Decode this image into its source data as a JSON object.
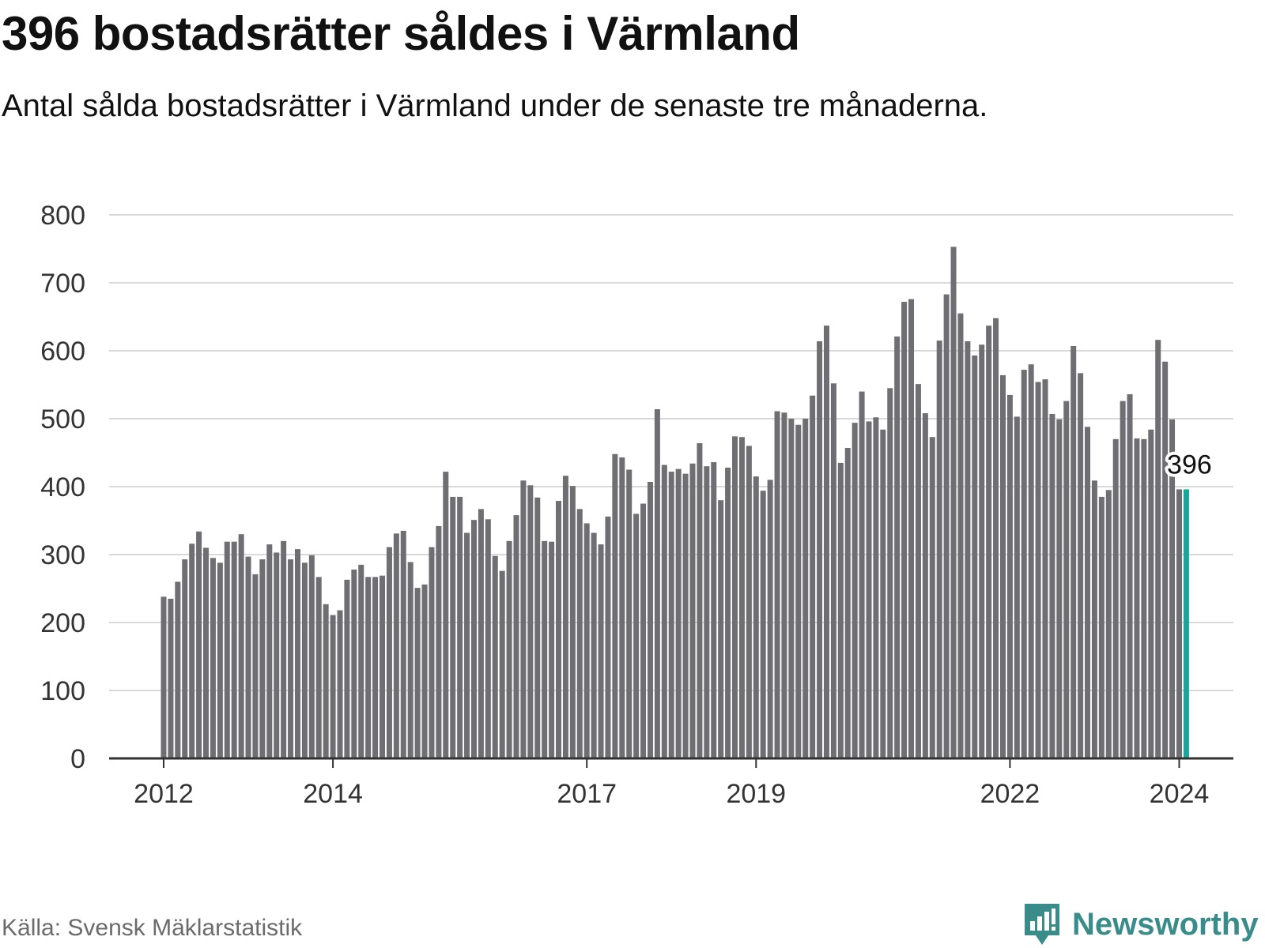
{
  "header": {
    "title": "396 bostadsrätter såldes i Värmland",
    "subtitle": "Antal sålda bostadsrätter i Värmland under de senaste tre månaderna."
  },
  "footer": {
    "source": "Källa: Svensk Mäklarstatistik",
    "brand": "Newsworthy"
  },
  "colors": {
    "bar": "#6e6e73",
    "highlight": "#16a69a",
    "grid": "#d9d9d9",
    "axis": "#333333",
    "brand": "#3a8c8b"
  },
  "chart_data": {
    "type": "bar",
    "title": "396 bostadsrätter såldes i Värmland",
    "subtitle": "Antal sålda bostadsrätter i Värmland under de senaste tre månaderna.",
    "xlabel": "",
    "ylabel": "",
    "ylim": [
      0,
      800
    ],
    "yticks": [
      0,
      100,
      200,
      300,
      400,
      500,
      600,
      700,
      800
    ],
    "grid": true,
    "x_ticks": [
      {
        "label": "2012",
        "index": 0
      },
      {
        "label": "2014",
        "index": 24
      },
      {
        "label": "2017",
        "index": 60
      },
      {
        "label": "2019",
        "index": 84
      },
      {
        "label": "2022",
        "index": 120
      },
      {
        "label": "2024",
        "index": 144
      }
    ],
    "values": [
      238,
      235,
      260,
      293,
      316,
      334,
      310,
      295,
      288,
      319,
      319,
      330,
      297,
      271,
      293,
      315,
      303,
      320,
      293,
      308,
      288,
      299,
      267,
      227,
      211,
      218,
      263,
      278,
      285,
      267,
      267,
      269,
      311,
      331,
      335,
      289,
      251,
      256,
      311,
      342,
      422,
      385,
      385,
      332,
      351,
      367,
      352,
      298,
      276,
      320,
      358,
      409,
      402,
      384,
      320,
      319,
      379,
      416,
      401,
      367,
      346,
      332,
      315,
      356,
      448,
      443,
      425,
      360,
      375,
      407,
      514,
      432,
      422,
      426,
      419,
      434,
      464,
      430,
      436,
      380,
      428,
      474,
      473,
      460,
      415,
      394,
      410,
      511,
      509,
      500,
      491,
      500,
      534,
      614,
      637,
      552,
      435,
      457,
      494,
      540,
      496,
      502,
      484,
      545,
      621,
      672,
      676,
      551,
      508,
      473,
      615,
      683,
      753,
      655,
      614,
      593,
      609,
      637,
      648,
      564,
      535,
      503,
      572,
      580,
      554,
      558,
      507,
      499,
      526,
      607,
      567,
      488,
      409,
      385,
      395,
      470,
      526,
      536,
      471,
      470,
      484,
      616,
      584,
      499,
      396,
      396
    ],
    "highlight": {
      "index": 145,
      "value": 396,
      "label": "396"
    }
  }
}
